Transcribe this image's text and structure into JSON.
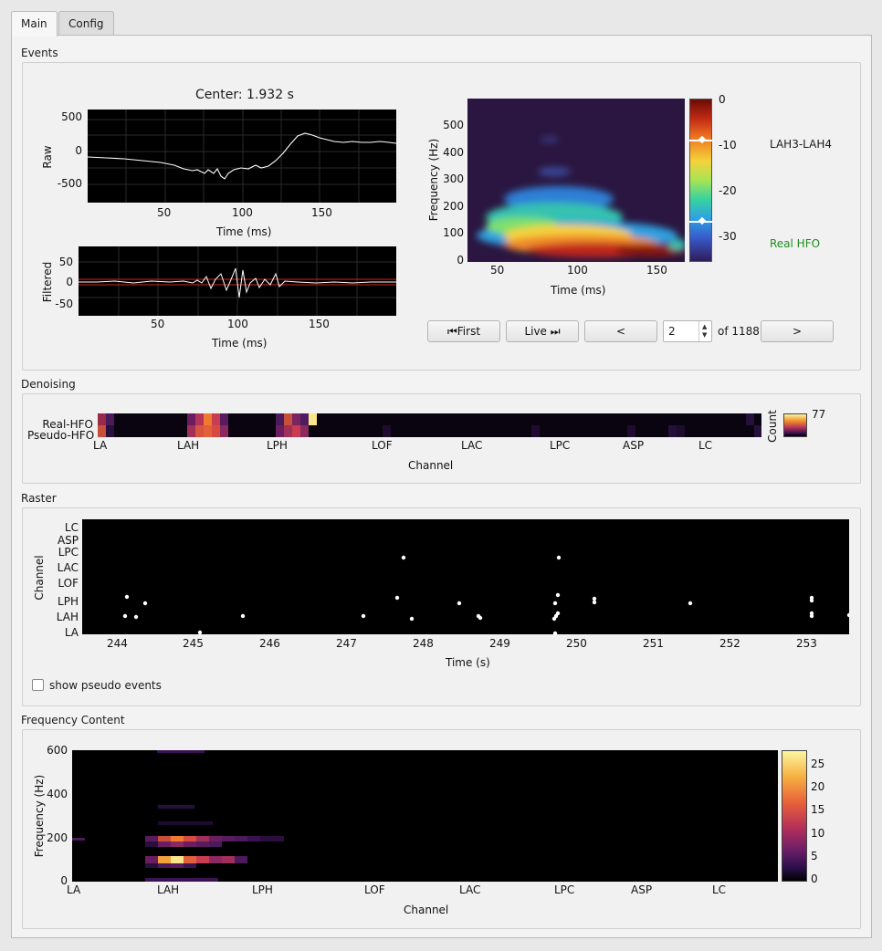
{
  "tabs": [
    {
      "label": "Main"
    },
    {
      "label": "Config"
    }
  ],
  "events": {
    "group_title": "Events",
    "center_label": "Center: 1.932 s",
    "raw": {
      "ylabel": "Raw",
      "yticks": [
        "500",
        "0",
        "-500"
      ],
      "xticks": [
        "50",
        "100",
        "150"
      ],
      "xlabel": "Time (ms)"
    },
    "filtered": {
      "ylabel": "Filtered",
      "yticks": [
        "50",
        "0",
        "-50"
      ],
      "xticks": [
        "50",
        "100",
        "150"
      ],
      "xlabel": "Time (ms)"
    },
    "spectrogram": {
      "ylabel": "Frequency (Hz)",
      "yticks": [
        "500",
        "400",
        "300",
        "200",
        "100",
        "0"
      ],
      "xticks": [
        "50",
        "100",
        "150"
      ],
      "xlabel": "Time (ms)",
      "colorbar_ticks": [
        "0",
        "-10",
        "-20",
        "-30"
      ]
    },
    "channel_name": "LAH3-LAH4",
    "classification": "Real HFO",
    "classification_color": "#1e8c1e",
    "nav": {
      "first_label": "⏮First",
      "live_label": "Live ⏭",
      "prev_label": "<",
      "next_label": ">",
      "current_index": "2",
      "total_label": "of 1188"
    }
  },
  "denoising": {
    "group_title": "Denoising",
    "row_labels": [
      "Real-HFO",
      "Pseudo-HFO"
    ],
    "channels": [
      "LA",
      "LAH",
      "LPH",
      "LOF",
      "LAC",
      "LPC",
      "ASP",
      "LC"
    ],
    "xlabel": "Channel",
    "colorbar_label": "Count",
    "colorbar_max": "77"
  },
  "raster": {
    "group_title": "Raster",
    "ylabel": "Channel",
    "channels": [
      "LC",
      "ASP",
      "LPC",
      "LAC",
      "LOF",
      "LPH",
      "LAH",
      "LA"
    ],
    "xticks": [
      "244",
      "245",
      "246",
      "247",
      "248",
      "249",
      "250",
      "251",
      "252",
      "253"
    ],
    "xlabel": "Time (s)",
    "show_pseudo_label": "show pseudo events",
    "show_pseudo_checked": false
  },
  "frequency": {
    "group_title": "Frequency Content",
    "ylabel": "Frequency (Hz)",
    "yticks": [
      "600",
      "400",
      "200",
      "0"
    ],
    "channels": [
      "LA",
      "LAH",
      "LPH",
      "LOF",
      "LAC",
      "LPC",
      "ASP",
      "LC"
    ],
    "xlabel": "Channel",
    "colorbar_ticks": [
      "25",
      "20",
      "15",
      "10",
      "5",
      "0"
    ]
  }
}
